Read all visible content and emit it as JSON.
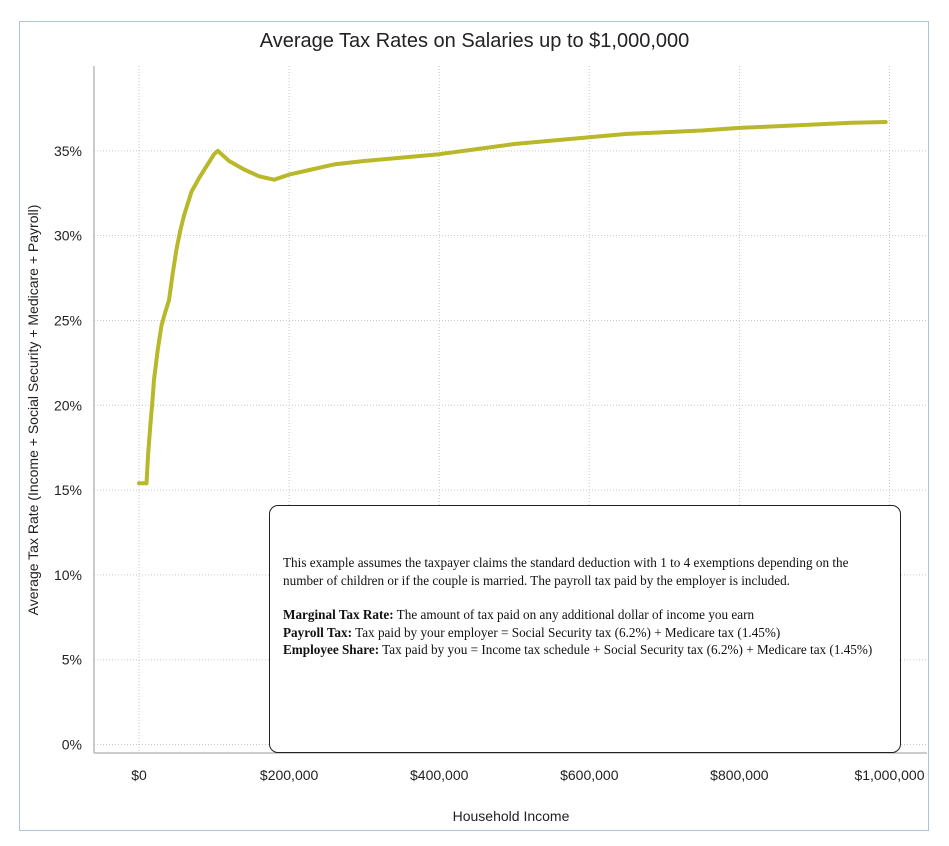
{
  "chart_data": {
    "type": "line",
    "title": "Average Tax Rates on Salaries up to $1,000,000",
    "xlabel": "Household Income",
    "ylabel": "Average Tax Rate (Income + Social Security + Medicare + Payroll)",
    "xlim": [
      -60000,
      1050000
    ],
    "ylim": [
      -0.5,
      40
    ],
    "x_ticks": [
      0,
      200000,
      400000,
      600000,
      800000,
      1000000
    ],
    "x_tick_labels": [
      "$0",
      "$200,000",
      "$400,000",
      "$600,000",
      "$800,000",
      "$1,000,000"
    ],
    "y_ticks": [
      0,
      5,
      10,
      15,
      20,
      25,
      30,
      35
    ],
    "y_tick_labels": [
      "0%",
      "5%",
      "10%",
      "15%",
      "20%",
      "25%",
      "30%",
      "35%"
    ],
    "grid": true,
    "color": "#b8b82a",
    "series": [
      {
        "x": [
          0,
          5000,
          10000,
          12000,
          15000,
          18000,
          20000,
          25000,
          30000,
          35000,
          40000,
          45000,
          50000,
          55000,
          60000,
          65000,
          70000,
          80000,
          90000,
          100000,
          105000,
          120000,
          140000,
          160000,
          180000,
          200000,
          230000,
          260000,
          300000,
          350000,
          400000,
          450000,
          500000,
          550000,
          600000,
          650000,
          700000,
          750000,
          800000,
          850000,
          900000,
          950000,
          995000
        ],
        "y": [
          15.4,
          15.4,
          15.4,
          17.0,
          18.8,
          20.3,
          21.5,
          23.3,
          24.7,
          25.5,
          26.2,
          27.8,
          29.2,
          30.3,
          31.2,
          31.9,
          32.6,
          33.4,
          34.1,
          34.8,
          35.0,
          34.4,
          33.9,
          33.5,
          33.3,
          33.6,
          33.9,
          34.2,
          34.4,
          34.6,
          34.8,
          35.1,
          35.4,
          35.6,
          35.8,
          36.0,
          36.1,
          36.2,
          36.35,
          36.45,
          36.55,
          36.65,
          36.7
        ]
      }
    ]
  },
  "note": {
    "intro": "This example assumes the taxpayer claims the standard deduction with 1 to 4 exemptions depending on the number of children or if the couple is married. The payroll tax paid by the employer is included.",
    "marginal_term": "Marginal Tax Rate:",
    "marginal_text": " The amount of tax paid on any additional dollar of income you earn",
    "payroll_term": "Payroll Tax:",
    "payroll_text": " Tax paid by your employer = Social Security tax (6.2%) + Medicare tax (1.45%)",
    "employee_term": "Employee Share:",
    "employee_text": "  Tax paid by you = Income tax schedule + Social Security tax (6.2%) + Medicare tax (1.45%)"
  }
}
